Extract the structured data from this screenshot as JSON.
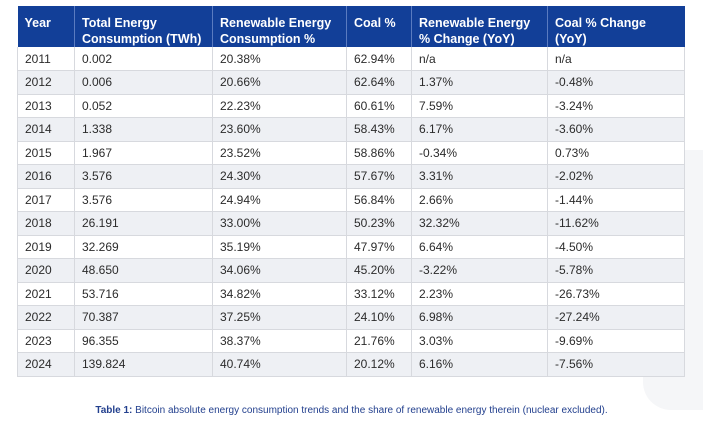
{
  "table": {
    "headers": [
      "Year",
      "Total Energy Consumption (TWh)",
      "Renewable Energy Consumption %",
      "Coal %",
      "Renewable Energy % Change (YoY)",
      "Coal % Change (YoY)"
    ],
    "rows": [
      [
        "2011",
        "0.002",
        "20.38%",
        "62.94%",
        "n/a",
        "n/a"
      ],
      [
        "2012",
        "0.006",
        "20.66%",
        "62.64%",
        "1.37%",
        "-0.48%"
      ],
      [
        "2013",
        "0.052",
        "22.23%",
        "60.61%",
        "7.59%",
        "-3.24%"
      ],
      [
        "2014",
        "1.338",
        "23.60%",
        "58.43%",
        "6.17%",
        "-3.60%"
      ],
      [
        "2015",
        "1.967",
        "23.52%",
        "58.86%",
        "-0.34%",
        "0.73%"
      ],
      [
        "2016",
        "3.576",
        "24.30%",
        "57.67%",
        "3.31%",
        "-2.02%"
      ],
      [
        "2017",
        "3.576",
        "24.94%",
        "56.84%",
        "2.66%",
        "-1.44%"
      ],
      [
        "2018",
        "26.191",
        "33.00%",
        "50.23%",
        "32.32%",
        "-11.62%"
      ],
      [
        "2019",
        "32.269",
        "35.19%",
        "47.97%",
        "6.64%",
        "-4.50%"
      ],
      [
        "2020",
        "48.650",
        "34.06%",
        "45.20%",
        "-3.22%",
        "-5.78%"
      ],
      [
        "2021",
        "53.716",
        "34.82%",
        "33.12%",
        "2.23%",
        "-26.73%"
      ],
      [
        "2022",
        "70.387",
        "37.25%",
        "24.10%",
        "6.98%",
        "-27.24%"
      ],
      [
        "2023",
        "96.355",
        "38.37%",
        "21.76%",
        "3.03%",
        "-9.69%"
      ],
      [
        "2024",
        "139.824",
        "40.74%",
        "20.12%",
        "6.16%",
        "-7.56%"
      ]
    ]
  },
  "caption": {
    "label": "Table 1:",
    "text": " Bitcoin absolute energy consumption trends and the share of renewable energy therein (nuclear excluded)."
  },
  "colors": {
    "header_bg": "#123f98",
    "stripe": "#eef0f4",
    "caption": "#23408e"
  }
}
